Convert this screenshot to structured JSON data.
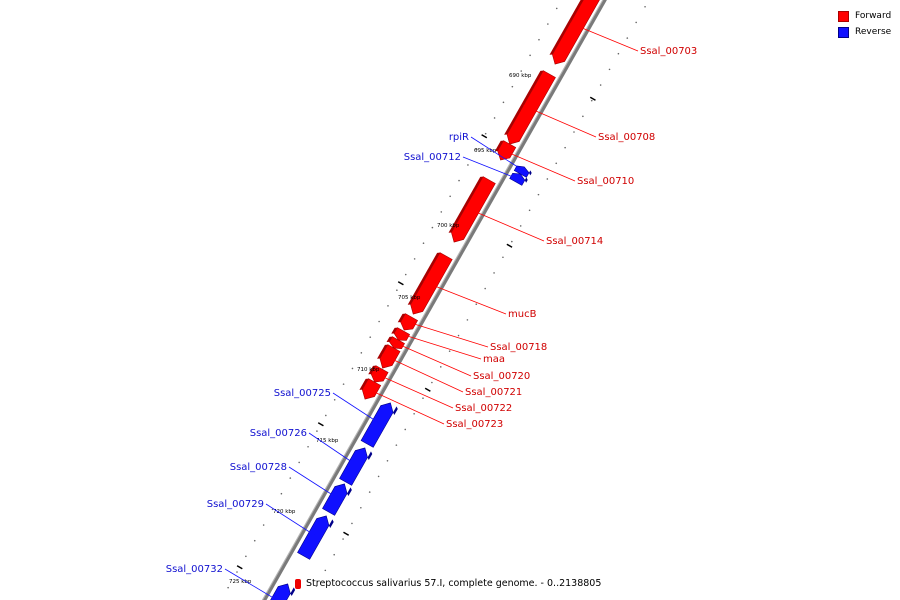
{
  "colors": {
    "forward": "#ff0000",
    "reverse": "#1010ff",
    "backbone": "#7a7a7a"
  },
  "legend": [
    {
      "label": "Forward",
      "color": "#ff0000"
    },
    {
      "label": "Reverse",
      "color": "#1010ff"
    }
  ],
  "footer": {
    "text": "Streptococcus salivarius 57.I, complete genome. - 0..2138805"
  },
  "ticks": [
    "690 kbp",
    "695 kbp",
    "700 kbp",
    "705 kbp",
    "710 kbp",
    "715 kbp",
    "720 kbp",
    "725 kbp"
  ],
  "genes": [
    {
      "label": "Ssal_00703",
      "strand": "forward"
    },
    {
      "label": "Ssal_00708",
      "strand": "forward"
    },
    {
      "label": "Ssal_00710",
      "strand": "forward"
    },
    {
      "label": "rpiR",
      "strand": "reverse"
    },
    {
      "label": "Ssal_00712",
      "strand": "reverse"
    },
    {
      "label": "Ssal_00714",
      "strand": "forward"
    },
    {
      "label": "mucB",
      "strand": "forward"
    },
    {
      "label": "Ssal_00718",
      "strand": "forward"
    },
    {
      "label": "maa",
      "strand": "forward"
    },
    {
      "label": "Ssal_00720",
      "strand": "forward"
    },
    {
      "label": "Ssal_00721",
      "strand": "forward"
    },
    {
      "label": "Ssal_00722",
      "strand": "forward"
    },
    {
      "label": "Ssal_00723",
      "strand": "forward"
    },
    {
      "label": "Ssal_00725",
      "strand": "reverse"
    },
    {
      "label": "Ssal_00726",
      "strand": "reverse"
    },
    {
      "label": "Ssal_00728",
      "strand": "reverse"
    },
    {
      "label": "Ssal_00729",
      "strand": "reverse"
    },
    {
      "label": "Ssal_00732",
      "strand": "reverse"
    }
  ]
}
